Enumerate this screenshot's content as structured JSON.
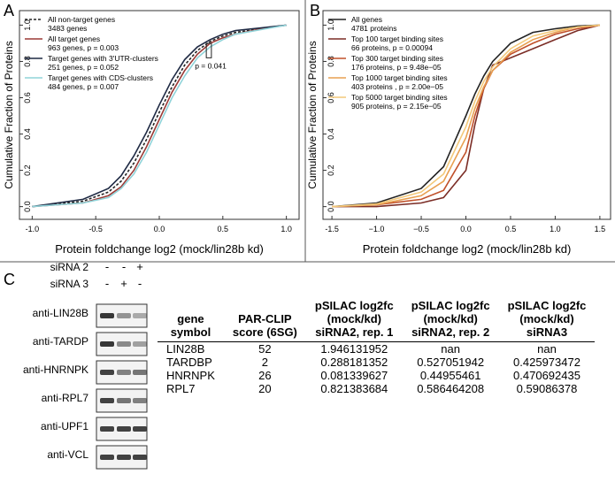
{
  "chart_data": [
    {
      "type": "line",
      "panel": "A",
      "xlabel": "Protein foldchange log2 (mock/lin28b kd)",
      "ylabel": "Cumulative Fraction of Proteins",
      "xlim": [
        -1.1,
        1.1
      ],
      "ylim": [
        -0.07,
        1.08
      ],
      "xticks": [
        {
          "value": -1,
          "label": "-1.0"
        },
        -0.5,
        {
          "value": 0,
          "label": "0.0"
        },
        0.5,
        {
          "value": 1,
          "label": "1.0"
        }
      ],
      "yticks": [
        {
          "value": 0,
          "label": "0.0"
        },
        0.2,
        0.4,
        0.6,
        0.8,
        {
          "value": 1,
          "label": "1.0"
        }
      ],
      "x": [
        -1,
        -0.6,
        -0.4,
        -0.3,
        -0.2,
        -0.1,
        0,
        0.1,
        0.2,
        0.3,
        0.4,
        0.5,
        0.6,
        0.8,
        1
      ],
      "series": [
        {
          "name": "All non-target genes",
          "note": "3483 genes",
          "color": "#222222",
          "style": "dashed",
          "values": [
            0,
            0.03,
            0.08,
            0.14,
            0.24,
            0.37,
            0.52,
            0.66,
            0.78,
            0.86,
            0.91,
            0.94,
            0.96,
            0.98,
            1
          ]
        },
        {
          "name": "All target genes",
          "note": "963 genes, p = 0.003",
          "color": "#9b3a36",
          "style": "solid",
          "values": [
            0,
            0.02,
            0.06,
            0.11,
            0.2,
            0.33,
            0.48,
            0.63,
            0.75,
            0.84,
            0.9,
            0.93,
            0.95,
            0.98,
            1
          ]
        },
        {
          "name": "Target genes with 3'UTR-clusters",
          "note": "251 genes, p = 0.052",
          "color": "#1f2a44",
          "style": "solid",
          "values": [
            0,
            0.04,
            0.1,
            0.17,
            0.28,
            0.41,
            0.56,
            0.7,
            0.81,
            0.88,
            0.92,
            0.95,
            0.97,
            0.985,
            1
          ]
        },
        {
          "name": "Target genes with CDS-clusters",
          "note": "484 genes, p = 0.007",
          "color": "#8fd3d9",
          "style": "solid",
          "values": [
            0,
            0.02,
            0.05,
            0.1,
            0.18,
            0.3,
            0.45,
            0.6,
            0.72,
            0.82,
            0.88,
            0.92,
            0.95,
            0.975,
            1
          ]
        }
      ],
      "annotation": "p = 0.041"
    },
    {
      "type": "line",
      "panel": "B",
      "xlabel": "Protein foldchange log2 (mock/lin28b kd)",
      "ylabel": "Cumulative Fraction of Proteins",
      "xlim": [
        -1.6,
        1.62
      ],
      "ylim": [
        -0.07,
        1.08
      ],
      "xticks": [
        -1.5,
        {
          "value": -1,
          "label": "−1.0"
        },
        {
          "value": -0.5,
          "label": "−0.5"
        },
        {
          "value": 0,
          "label": "0.0"
        },
        0.5,
        {
          "value": 1,
          "label": "1.0"
        },
        1.5
      ],
      "yticks": [
        {
          "value": 0,
          "label": "0.0"
        },
        0.2,
        0.4,
        0.6,
        0.8,
        {
          "value": 1,
          "label": "1.0"
        }
      ],
      "x": [
        -1.5,
        -1,
        -0.5,
        -0.25,
        0,
        0.1,
        0.2,
        0.3,
        0.5,
        0.75,
        1,
        1.25,
        1.5
      ],
      "series": [
        {
          "name": "All genes",
          "note": "4781 proteins",
          "color": "#222222",
          "style": "solid",
          "values": [
            0,
            0.02,
            0.1,
            0.22,
            0.5,
            0.62,
            0.72,
            0.8,
            0.9,
            0.96,
            0.98,
            0.995,
            1
          ]
        },
        {
          "name": "Top 100 target binding sites",
          "note": "66 proteins, p = 0.00094",
          "color": "#7b2d26",
          "style": "solid",
          "values": [
            0,
            0,
            0.02,
            0.05,
            0.2,
            0.45,
            0.65,
            0.78,
            0.82,
            0.87,
            0.92,
            0.97,
            1
          ]
        },
        {
          "name": "Top 300 target binding sites",
          "note": "176 proteins, p =  9.48e−05",
          "color": "#c0502a",
          "style": "solid",
          "values": [
            0,
            0.01,
            0.04,
            0.09,
            0.3,
            0.5,
            0.65,
            0.75,
            0.84,
            0.9,
            0.95,
            0.98,
            1
          ]
        },
        {
          "name": "Top 1000 target binding sites",
          "note": "403 proteins , p = 2.00e−05",
          "color": "#e8a050",
          "style": "solid",
          "values": [
            0,
            0.01,
            0.06,
            0.14,
            0.38,
            0.54,
            0.66,
            0.75,
            0.85,
            0.92,
            0.96,
            0.99,
            1
          ]
        },
        {
          "name": "Top 5000 target binding sites",
          "note": "905 proteins, p = 2.15e−05",
          "color": "#f3c97a",
          "style": "solid",
          "values": [
            0,
            0.015,
            0.08,
            0.18,
            0.44,
            0.58,
            0.69,
            0.77,
            0.87,
            0.94,
            0.97,
            0.99,
            1
          ]
        }
      ]
    }
  ],
  "panel_c": {
    "panel": "C",
    "conditions": [
      {
        "label": "siRNA 2",
        "marks": [
          "-",
          "-",
          "+"
        ]
      },
      {
        "label": "siRNA 3",
        "marks": [
          "-",
          "+",
          "-"
        ]
      }
    ],
    "antibodies": [
      "anti-LIN28B",
      "anti-TARDP",
      "anti-HNRNPK",
      "anti-RPL7",
      "anti-UPF1",
      "anti-VCL"
    ],
    "table": {
      "header": [
        [
          "gene",
          "symbol"
        ],
        [
          "PAR-CLIP",
          "score (6SG)"
        ],
        [
          "pSILAC log2fc",
          "(mock/kd)",
          "siRNA2, rep. 1"
        ],
        [
          "pSILAC log2fc",
          "(mock/kd)",
          "siRNA2, rep. 2"
        ],
        [
          "pSILAC log2fc",
          "(mock/kd)",
          "siRNA3"
        ]
      ],
      "rows": [
        [
          "LIN28B",
          "52",
          "1.946131952",
          "nan",
          "nan"
        ],
        [
          "TARDBP",
          "2",
          "0.288181352",
          "0.527051942",
          "0.425973472"
        ],
        [
          "HNRNPK",
          "26",
          "0.081339627",
          "0.44955461",
          "0.470692435"
        ],
        [
          "RPL7",
          "20",
          "0.821383684",
          "0.586464208",
          "0.59086378"
        ]
      ]
    }
  }
}
